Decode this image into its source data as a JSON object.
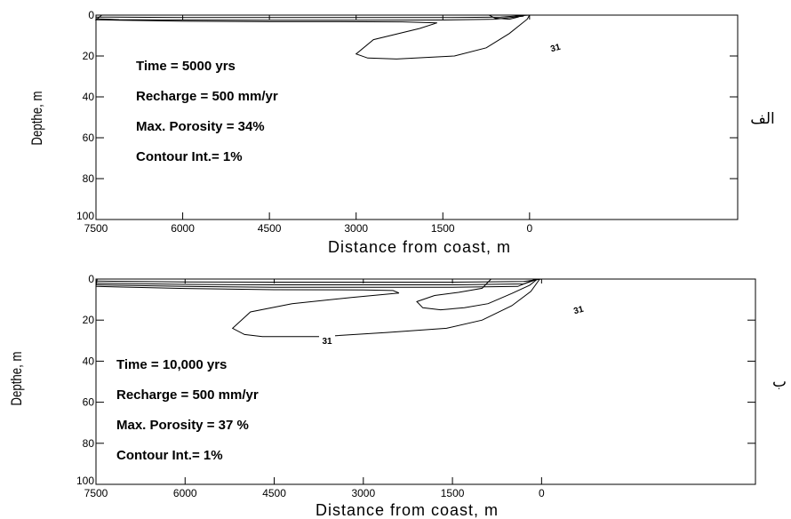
{
  "chart_data": [
    {
      "type": "contour",
      "panel_label": "الف",
      "xlabel": "Distance from coast, m",
      "ylabel": "Depthe, m",
      "x_ticks": [
        7500,
        6000,
        4500,
        3000,
        1500,
        0
      ],
      "y_ticks": [
        0,
        20,
        40,
        60,
        80,
        100
      ],
      "xlim": [
        7500,
        -3600
      ],
      "ylim": [
        0,
        100
      ],
      "y_inverted": true,
      "annotations": [
        "Time = 5000 yrs",
        "Recharge = 500 mm/yr",
        "Max. Porosity = 34%",
        "Contour Int.= 1%"
      ],
      "contour_labels": [
        "31"
      ],
      "contours": [
        [
          [
            7500,
            1
          ],
          [
            7200,
            1
          ],
          [
            6000,
            1.2
          ],
          [
            4500,
            1.2
          ],
          [
            3000,
            1.2
          ],
          [
            1500,
            1.2
          ],
          [
            500,
            1
          ],
          [
            0,
            0
          ]
        ],
        [
          [
            7500,
            1.8
          ],
          [
            7100,
            2.2
          ],
          [
            6000,
            2.4
          ],
          [
            4500,
            2.5
          ],
          [
            3000,
            2.5
          ],
          [
            1500,
            2.4
          ],
          [
            600,
            2
          ],
          [
            100,
            0.5
          ]
        ],
        [
          [
            700,
            0
          ],
          [
            600,
            1.5
          ],
          [
            350,
            2
          ],
          [
            200,
            1
          ],
          [
            250,
            0
          ]
        ],
        [
          [
            7400,
            0
          ],
          [
            7500,
            2.3
          ],
          [
            6000,
            3
          ],
          [
            4500,
            3.2
          ],
          [
            3300,
            3.2
          ],
          [
            2200,
            3.3
          ],
          [
            1600,
            3.8
          ],
          [
            1900,
            6.5
          ],
          [
            2700,
            12
          ],
          [
            3000,
            19
          ],
          [
            2800,
            21
          ],
          [
            2300,
            21.5
          ],
          [
            1300,
            20
          ],
          [
            750,
            16
          ],
          [
            350,
            9
          ],
          [
            40,
            2
          ],
          [
            0,
            0
          ]
        ]
      ]
    },
    {
      "type": "contour",
      "panel_label": "ب",
      "xlabel": "Distance from coast, m",
      "ylabel": "Depthe, m",
      "x_ticks": [
        7500,
        6000,
        4500,
        3000,
        1500,
        0
      ],
      "y_ticks": [
        0,
        20,
        40,
        60,
        80,
        100
      ],
      "xlim": [
        7500,
        -3600
      ],
      "ylim": [
        0,
        100
      ],
      "y_inverted": true,
      "annotations": [
        "Time = 10,000 yrs",
        "Recharge = 500 mm/yr",
        "Max. Porosity = 37 %",
        "Contour Int.= 1%"
      ],
      "contour_labels": [
        "31",
        "31"
      ],
      "contours": [
        [
          [
            7500,
            1
          ],
          [
            6000,
            1.4
          ],
          [
            4500,
            1.5
          ],
          [
            3000,
            1.5
          ],
          [
            1500,
            1.5
          ],
          [
            300,
            1.2
          ],
          [
            0,
            0
          ]
        ],
        [
          [
            7500,
            2
          ],
          [
            6000,
            2.6
          ],
          [
            4500,
            2.8
          ],
          [
            3000,
            2.8
          ],
          [
            1500,
            2.8
          ],
          [
            300,
            2.4
          ],
          [
            60,
            0
          ]
        ],
        [
          [
            7500,
            2.8
          ],
          [
            6000,
            3.6
          ],
          [
            4500,
            4
          ],
          [
            3000,
            4
          ],
          [
            1500,
            4
          ],
          [
            400,
            3.6
          ],
          [
            100,
            0
          ]
        ],
        [
          [
            7480,
            0
          ],
          [
            7500,
            3.6
          ],
          [
            6000,
            4.6
          ],
          [
            4500,
            5.2
          ],
          [
            3000,
            5.3
          ],
          [
            2500,
            5.6
          ],
          [
            2400,
            6.8
          ],
          [
            3200,
            9
          ],
          [
            4200,
            12
          ],
          [
            4900,
            16
          ],
          [
            5200,
            24
          ],
          [
            5000,
            27
          ],
          [
            4700,
            28
          ],
          [
            3700,
            28
          ],
          [
            2600,
            26
          ],
          [
            1600,
            24
          ],
          [
            1000,
            20
          ],
          [
            500,
            13
          ],
          [
            180,
            6
          ],
          [
            30,
            0
          ]
        ],
        [
          [
            850,
            0
          ],
          [
            1000,
            4.5
          ],
          [
            1400,
            6.5
          ],
          [
            1800,
            8
          ],
          [
            2100,
            11
          ],
          [
            2000,
            14
          ],
          [
            1700,
            15
          ],
          [
            1300,
            14
          ],
          [
            900,
            12
          ],
          [
            500,
            7
          ],
          [
            200,
            3
          ],
          [
            70,
            0
          ]
        ]
      ]
    }
  ]
}
